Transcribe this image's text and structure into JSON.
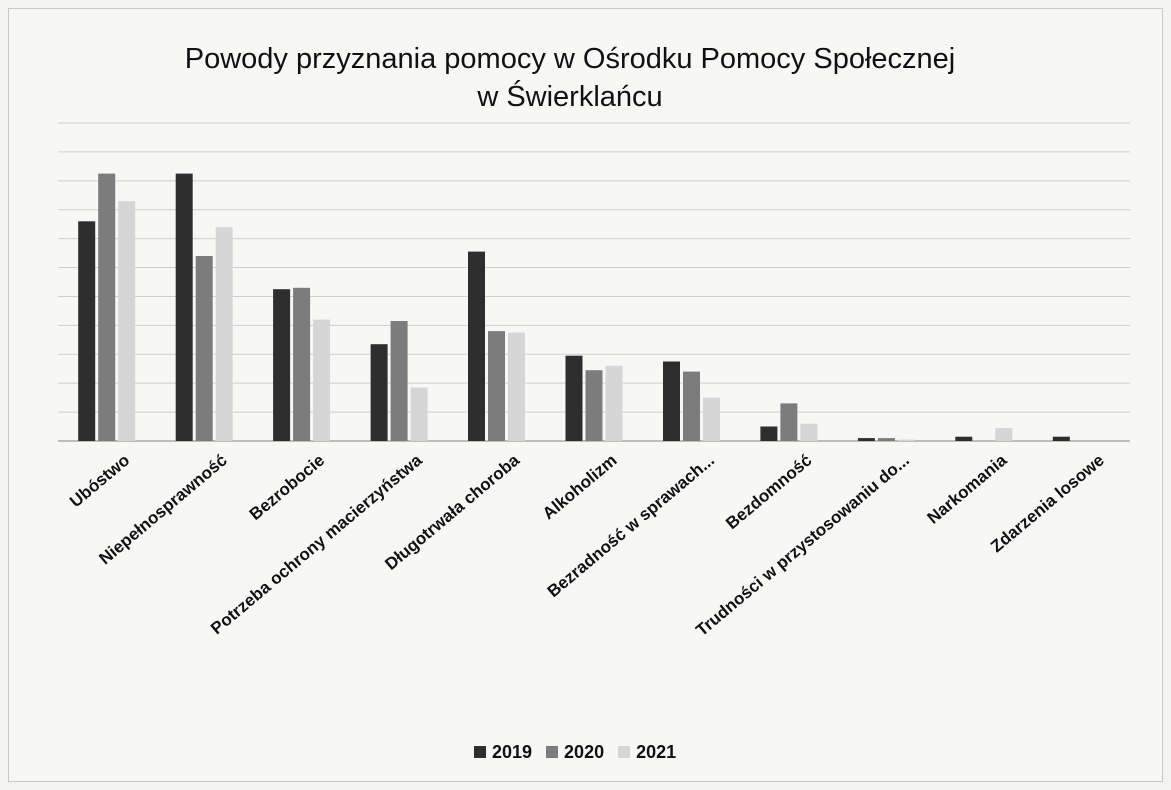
{
  "chart_data": {
    "type": "bar",
    "title": "Powody przyznania pomocy w Ośrodku Pomocy Społecznej w Świerklańcu",
    "title_lines": [
      "Powody przyznania pomocy w Ośrodku Pomocy Społecznej",
      "w Świerklańcu"
    ],
    "categories": [
      "Ubóstwo",
      "Niepełnosprawność",
      "Bezrobocie",
      "Potrzeba ochrony macierzyństwa",
      "Długotrwała choroba",
      "Alkoholizm",
      "Bezradność w sprawach...",
      "Bezdomność",
      "Trudności w przystosowaniu do...",
      "Narkomania",
      "Zdarzenia losowe"
    ],
    "series": [
      {
        "name": "2019",
        "color": "#2e2e2e",
        "values": [
          152,
          185,
          105,
          67,
          131,
          59,
          55,
          10,
          2,
          3,
          3
        ]
      },
      {
        "name": "2020",
        "color": "#7c7c7c",
        "values": [
          185,
          128,
          106,
          83,
          76,
          49,
          48,
          26,
          2,
          0,
          0
        ]
      },
      {
        "name": "2021",
        "color": "#d6d6d6",
        "values": [
          166,
          148,
          84,
          37,
          75,
          52,
          30,
          12,
          1,
          9,
          0
        ]
      }
    ],
    "ylim": [
      0,
      220
    ],
    "grid": true,
    "y_tick_labels_visible": false,
    "legend_position": "bottom"
  }
}
